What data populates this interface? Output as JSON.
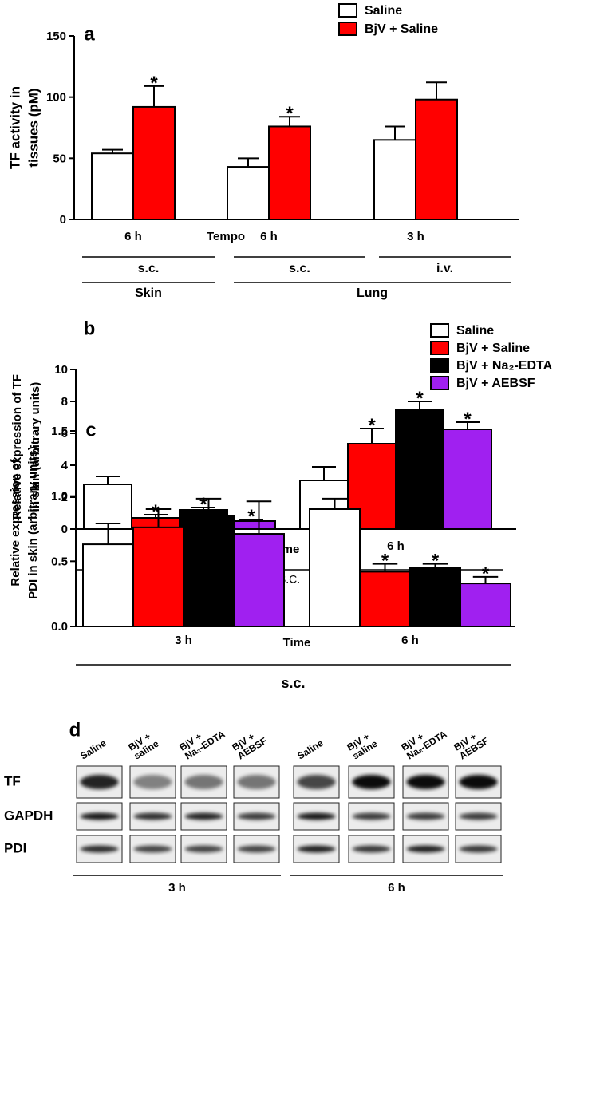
{
  "chart_data": [
    {
      "type": "bar",
      "panel_label": "a",
      "ylabel": [
        "TF activity in",
        "tissues (pM)"
      ],
      "xlabel": "Tempo",
      "categories": [
        "6 h",
        "6 h",
        "3 h"
      ],
      "series": [
        {
          "name": "Saline",
          "color": "#ffffff",
          "values": [
            54,
            43,
            65
          ],
          "errors": [
            3,
            7,
            11
          ]
        },
        {
          "name": "BjV + Saline",
          "color": "#ff0000",
          "values": [
            92,
            76,
            98
          ],
          "errors": [
            17,
            8,
            14
          ]
        }
      ],
      "ylim": [
        0,
        150
      ],
      "yticks": [
        0,
        50,
        100,
        150
      ],
      "legend": "top-right",
      "annotations": [
        {
          "series": 1,
          "index": 0,
          "text": "*"
        },
        {
          "series": 1,
          "index": 1,
          "text": "*"
        }
      ],
      "x_brackets": [
        [
          {
            "label": "s.c.",
            "from": 0,
            "to": 0
          },
          {
            "label": "s.c.",
            "from": 1,
            "to": 1
          },
          {
            "label": "i.v.",
            "from": 2,
            "to": 2
          }
        ],
        [
          {
            "label": "Skin",
            "from": 0,
            "to": 0
          },
          {
            "label": "Lung",
            "from": 1,
            "to": 2
          }
        ]
      ]
    },
    {
      "type": "bar",
      "panel_label": "b",
      "ylabel": [
        "Relative expression of TF",
        "in skin (arbitrary units)"
      ],
      "xlabel": "Time",
      "categories": [
        "3 h",
        "6 h"
      ],
      "series": [
        {
          "name": "Saline",
          "color": "#ffffff",
          "values": [
            2.8,
            3.05
          ],
          "errors": [
            0.5,
            0.85
          ]
        },
        {
          "name": "BjV + Saline",
          "color": "#ff0000",
          "values": [
            0.7,
            5.35
          ],
          "errors": [
            0.2,
            0.95
          ]
        },
        {
          "name": "BjV + Na₂-EDTA",
          "color": "#000000",
          "values": [
            1.2,
            7.5
          ],
          "errors": [
            0.15,
            0.5
          ]
        },
        {
          "name": "BjV + AEBSF",
          "color": "#a020f0",
          "values": [
            0.5,
            6.25
          ],
          "errors": [
            0.1,
            0.45
          ]
        }
      ],
      "ylim": [
        0,
        10
      ],
      "yticks": [
        0,
        2,
        4,
        6,
        8,
        10
      ],
      "legend": "top-right",
      "annotations": [
        {
          "series": 1,
          "index": 0,
          "text": "*"
        },
        {
          "series": 2,
          "index": 0,
          "text": "*"
        },
        {
          "series": 3,
          "index": 0,
          "text": "*"
        },
        {
          "series": 1,
          "index": 1,
          "text": "*"
        },
        {
          "series": 2,
          "index": 1,
          "text": "*"
        },
        {
          "series": 3,
          "index": 1,
          "text": "*"
        }
      ],
      "x_brackets": [
        [
          {
            "label": "S.C.",
            "from": 0,
            "to": 1
          }
        ]
      ]
    },
    {
      "type": "bar",
      "panel_label": "c",
      "ylabel": [
        "Relative expression of",
        "PDI in skin (arbitrary units)"
      ],
      "xlabel": "Time",
      "categories": [
        "3 h",
        "6 h"
      ],
      "series": [
        {
          "color": "#ffffff",
          "values": [
            0.63,
            0.9
          ],
          "errors": [
            0.16,
            0.08
          ]
        },
        {
          "color": "#ff0000",
          "values": [
            0.76,
            0.42
          ],
          "errors": [
            0.14,
            0.06
          ]
        },
        {
          "color": "#000000",
          "values": [
            0.85,
            0.45
          ],
          "errors": [
            0.13,
            0.03
          ]
        },
        {
          "color": "#a020f0",
          "values": [
            0.71,
            0.33
          ],
          "errors": [
            0.25,
            0.05
          ]
        }
      ],
      "ylim": [
        0,
        1.5
      ],
      "yticks": [
        {
          "value": 0,
          "label": "0.0"
        },
        0.5,
        {
          "value": 1,
          "label": "1.0"
        },
        1.5
      ],
      "annotations": [
        {
          "series": 1,
          "index": 1,
          "text": "*"
        },
        {
          "series": 2,
          "index": 1,
          "text": "*"
        },
        {
          "series": 3,
          "index": 1,
          "text": "*"
        }
      ],
      "x_brackets": [
        [
          {
            "label": "s.c.",
            "from": 0,
            "to": 1
          }
        ]
      ]
    }
  ],
  "blot": {
    "panel_label": "d",
    "rows": [
      "TF",
      "GAPDH",
      "PDI"
    ],
    "sets": [
      {
        "label": "3 h",
        "lanes": [
          [
            "Saline"
          ],
          [
            "BjV +",
            "saline"
          ],
          [
            "BjV +",
            "Na₂-EDTA"
          ],
          [
            "BjV +",
            "AEBSF"
          ]
        ]
      },
      {
        "label": "6 h",
        "lanes": [
          [
            "Saline"
          ],
          [
            "BjV +",
            "saline"
          ],
          [
            "BjV +",
            "Na₂-EDTA"
          ],
          [
            "BjV +",
            "AEBSF"
          ]
        ]
      }
    ]
  }
}
